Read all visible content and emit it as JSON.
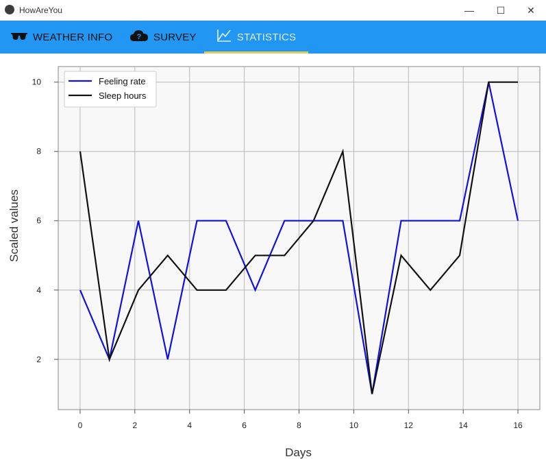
{
  "window": {
    "title": "HowAreYou",
    "minimize_glyph": "—",
    "maximize_glyph": "☐",
    "close_glyph": "✕"
  },
  "tabs": [
    {
      "label": "WEATHER INFO",
      "icon": "sunglasses-icon"
    },
    {
      "label": "SURVEY",
      "icon": "cloud-question-icon"
    },
    {
      "label": "STATISTICS",
      "icon": "chart-line-icon",
      "active": true
    }
  ],
  "colors": {
    "tab_bar": "#2196f3",
    "active_underline": "#e6c85a",
    "feeling_series": "#1010e0",
    "sleep_series": "#111111"
  },
  "chart_data": {
    "type": "line",
    "title": "",
    "xlabel": "Days",
    "ylabel": "Scaled values",
    "xlim": [
      -0.8,
      16.8
    ],
    "ylim": [
      0.55,
      10.45
    ],
    "xticks": [
      0,
      2,
      4,
      6,
      8,
      10,
      12,
      14,
      16
    ],
    "yticks": [
      2,
      4,
      6,
      8,
      10
    ],
    "grid": true,
    "legend_position": "top-left",
    "x": [
      0,
      1.07,
      2.13,
      3.2,
      4.27,
      5.33,
      6.4,
      7.47,
      8.53,
      9.6,
      10.67,
      11.73,
      12.8,
      13.87,
      14.93,
      16
    ],
    "series": [
      {
        "name": "Feeling rate",
        "values": [
          4,
          2,
          6,
          2,
          6,
          6,
          4,
          6,
          6,
          6,
          1,
          6,
          6,
          6,
          10,
          6
        ]
      },
      {
        "name": "Sleep hours",
        "values": [
          8,
          2,
          4,
          5,
          4,
          4,
          5,
          5,
          6,
          8,
          1,
          5,
          4,
          5,
          10,
          10
        ]
      }
    ]
  }
}
